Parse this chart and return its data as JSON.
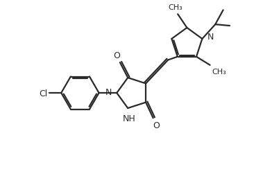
{
  "bg_color": "#ffffff",
  "line_color": "#2a2a2a",
  "bond_lw": 1.6,
  "figsize": [
    3.79,
    2.55
  ],
  "dpi": 100,
  "xlim": [
    0,
    10
  ],
  "ylim": [
    0,
    6.7
  ]
}
